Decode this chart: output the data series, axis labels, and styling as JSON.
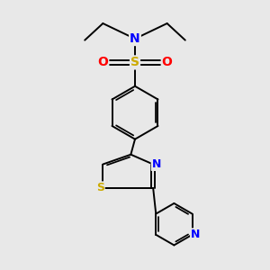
{
  "background_color": "#e8e8e8",
  "atom_colors": {
    "N": "#0000ff",
    "S_sulfonyl": "#ccaa00",
    "S_thiazole": "#ccaa00",
    "O": "#ff0000",
    "C": "#000000"
  },
  "bond_color": "#000000",
  "bond_width": 1.4,
  "font_size_main": 10,
  "font_size_ring": 9
}
